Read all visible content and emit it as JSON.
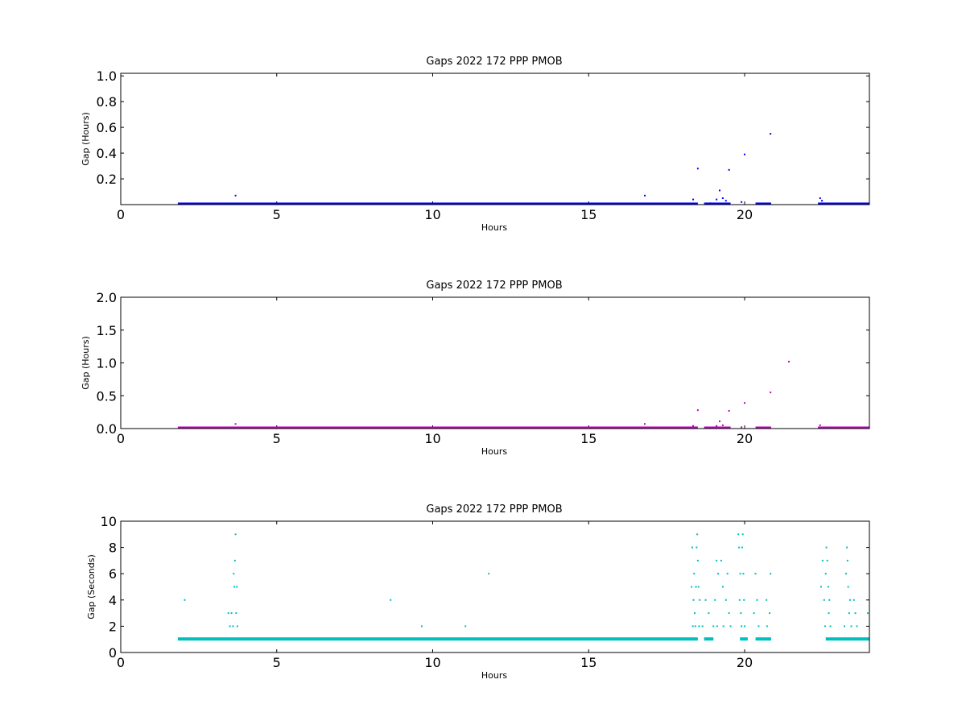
{
  "chart_data": [
    {
      "type": "scatter",
      "title": "Gaps 2022 172 PPP  PMOB",
      "xlabel": "Hours",
      "ylabel": "Gap (Hours)",
      "xlim": [
        0,
        24
      ],
      "ylim": [
        0,
        1.02
      ],
      "xticks": [
        "0",
        "5",
        "10",
        "15",
        "20"
      ],
      "yticks": [
        "0.2",
        "0.4",
        "0.6",
        "0.8",
        "1.0"
      ],
      "grid": false,
      "color": "#0000ff",
      "baseline_segments": [
        [
          1.83,
          18.5
        ],
        [
          18.7,
          19.55
        ],
        [
          20.35,
          20.85
        ],
        [
          22.35,
          24
        ]
      ],
      "baseline_value": 0.0003,
      "points": [
        [
          3.68,
          0.07
        ],
        [
          16.8,
          0.07
        ],
        [
          18.35,
          0.04
        ],
        [
          18.5,
          0.28
        ],
        [
          18.9,
          0.01
        ],
        [
          19.1,
          0.04
        ],
        [
          19.2,
          0.11
        ],
        [
          19.3,
          0.05
        ],
        [
          19.4,
          0.03
        ],
        [
          19.5,
          0.27
        ],
        [
          19.9,
          0.02
        ],
        [
          20.0,
          0.39
        ],
        [
          20.83,
          0.55
        ],
        [
          22.42,
          0.05
        ],
        [
          22.48,
          0.03
        ]
      ]
    },
    {
      "type": "scatter",
      "title": "Gaps 2022 172 PPP  PMOB",
      "xlabel": "Hours",
      "ylabel": "Gap (Hours)",
      "xlim": [
        0,
        24
      ],
      "ylim": [
        0,
        2.0
      ],
      "xticks": [
        "0",
        "5",
        "10",
        "15",
        "20"
      ],
      "yticks": [
        "0.0",
        "0.5",
        "1.0",
        "1.5",
        "2.0"
      ],
      "grid": false,
      "color": "#bf00bf",
      "baseline_segments": [
        [
          1.83,
          18.5
        ],
        [
          18.7,
          19.55
        ],
        [
          20.35,
          20.85
        ],
        [
          22.35,
          24
        ]
      ],
      "baseline_value": 0.0003,
      "points": [
        [
          3.68,
          0.07
        ],
        [
          16.8,
          0.07
        ],
        [
          18.35,
          0.04
        ],
        [
          18.5,
          0.28
        ],
        [
          19.1,
          0.04
        ],
        [
          19.2,
          0.11
        ],
        [
          19.3,
          0.05
        ],
        [
          19.5,
          0.27
        ],
        [
          19.9,
          0.02
        ],
        [
          20.0,
          0.39
        ],
        [
          20.83,
          0.55
        ],
        [
          21.42,
          1.02
        ],
        [
          22.42,
          0.05
        ]
      ]
    },
    {
      "type": "scatter",
      "title": "Gaps 2022 172 PPP  PMOB",
      "xlabel": "Hours",
      "ylabel": "Gap (Seconds)",
      "xlim": [
        0,
        24
      ],
      "ylim": [
        0,
        10
      ],
      "xticks": [
        "0",
        "5",
        "10",
        "15",
        "20"
      ],
      "yticks": [
        "0",
        "2",
        "4",
        "6",
        "8",
        "10"
      ],
      "grid": false,
      "color": "#00bfbf",
      "baseline_segments": [
        [
          1.83,
          18.5
        ],
        [
          18.7,
          19.0
        ],
        [
          19.85,
          20.1
        ],
        [
          20.35,
          20.85
        ],
        [
          22.6,
          24
        ]
      ],
      "baseline_value": 1,
      "points": [
        [
          2.05,
          4
        ],
        [
          3.45,
          3
        ],
        [
          3.5,
          2
        ],
        [
          3.55,
          3
        ],
        [
          3.6,
          2
        ],
        [
          3.62,
          6
        ],
        [
          3.64,
          5
        ],
        [
          3.66,
          7
        ],
        [
          3.68,
          9
        ],
        [
          3.7,
          3
        ],
        [
          3.72,
          5
        ],
        [
          3.74,
          2
        ],
        [
          8.65,
          4
        ],
        [
          9.65,
          2
        ],
        [
          11.05,
          2
        ],
        [
          11.8,
          6
        ],
        [
          18.3,
          5
        ],
        [
          18.32,
          8
        ],
        [
          18.34,
          2
        ],
        [
          18.36,
          4
        ],
        [
          18.38,
          6
        ],
        [
          18.4,
          3
        ],
        [
          18.42,
          2
        ],
        [
          18.44,
          5
        ],
        [
          18.46,
          8
        ],
        [
          18.48,
          9
        ],
        [
          18.5,
          7
        ],
        [
          18.52,
          5
        ],
        [
          18.54,
          2
        ],
        [
          18.56,
          4
        ],
        [
          18.65,
          2
        ],
        [
          18.75,
          4
        ],
        [
          18.85,
          3
        ],
        [
          19.0,
          2
        ],
        [
          19.05,
          4
        ],
        [
          19.1,
          7
        ],
        [
          19.12,
          2
        ],
        [
          19.15,
          6
        ],
        [
          19.25,
          7
        ],
        [
          19.3,
          5
        ],
        [
          19.32,
          2
        ],
        [
          19.4,
          4
        ],
        [
          19.45,
          6
        ],
        [
          19.5,
          3
        ],
        [
          19.55,
          2
        ],
        [
          19.8,
          9
        ],
        [
          19.82,
          8
        ],
        [
          19.84,
          4
        ],
        [
          19.86,
          6
        ],
        [
          19.88,
          3
        ],
        [
          19.9,
          2
        ],
        [
          19.92,
          8
        ],
        [
          19.94,
          9
        ],
        [
          19.96,
          6
        ],
        [
          19.98,
          4
        ],
        [
          20.0,
          2
        ],
        [
          20.3,
          3
        ],
        [
          20.35,
          6
        ],
        [
          20.4,
          4
        ],
        [
          20.45,
          2
        ],
        [
          20.7,
          4
        ],
        [
          20.72,
          2
        ],
        [
          20.8,
          3
        ],
        [
          20.83,
          6
        ],
        [
          22.45,
          5
        ],
        [
          22.5,
          7
        ],
        [
          22.55,
          4
        ],
        [
          22.58,
          2
        ],
        [
          22.6,
          6
        ],
        [
          22.62,
          8
        ],
        [
          22.65,
          7
        ],
        [
          22.68,
          5
        ],
        [
          22.7,
          3
        ],
        [
          22.72,
          4
        ],
        [
          22.75,
          2
        ],
        [
          23.2,
          2
        ],
        [
          23.25,
          6
        ],
        [
          23.28,
          8
        ],
        [
          23.3,
          7
        ],
        [
          23.32,
          5
        ],
        [
          23.35,
          3
        ],
        [
          23.38,
          4
        ],
        [
          23.42,
          2
        ],
        [
          23.5,
          4
        ],
        [
          23.55,
          3
        ],
        [
          23.6,
          2
        ],
        [
          23.95,
          3
        ]
      ]
    }
  ]
}
